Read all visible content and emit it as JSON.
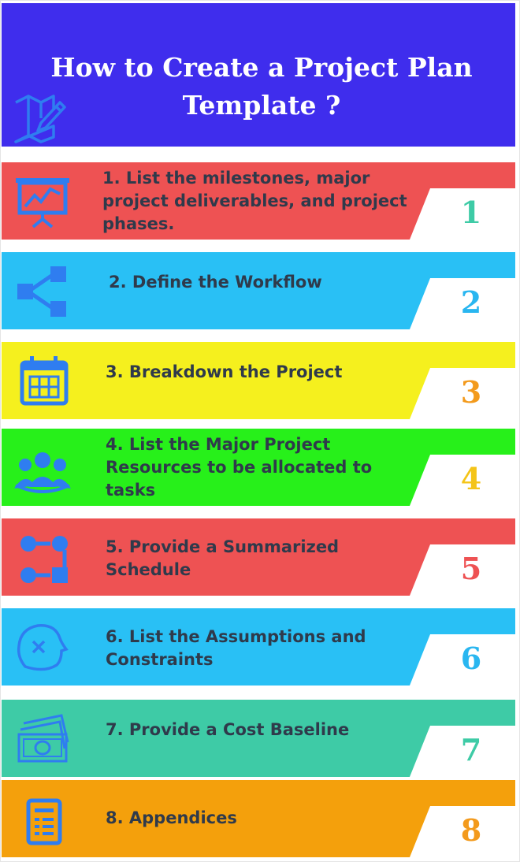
{
  "header": {
    "title": "How to Create a Project Plan Template ?",
    "background": "#3f2ded",
    "icon": "map-pencil-icon"
  },
  "steps": [
    {
      "label": "1. List the milestones, major project deliverables, and project phases.",
      "number": "1",
      "color": "#ee5253",
      "number_color": "#3ecba6",
      "icon": "presentation-chart-icon"
    },
    {
      "label": "2. Define the Workflow",
      "number": "2",
      "color": "#29c0f5",
      "number_color": "#29b6f0",
      "icon": "workflow-icon"
    },
    {
      "label": "3. Breakdown the Project",
      "number": "3",
      "color": "#f5f01e",
      "number_color": "#f39a1c",
      "icon": "calendar-icon"
    },
    {
      "label": "4. List the Major Project Resources to be allocated to tasks",
      "number": "4",
      "color": "#27f01a",
      "number_color": "#f4c418",
      "icon": "team-icon"
    },
    {
      "label": "5. Provide a Summarized Schedule",
      "number": "5",
      "color": "#ee5253",
      "number_color": "#ee5253",
      "icon": "schedule-flow-icon"
    },
    {
      "label": "6. List the Assumptions and Constraints",
      "number": "6",
      "color": "#29c0f5",
      "number_color": "#29b6f0",
      "icon": "head-constraint-icon"
    },
    {
      "label": "7. Provide a Cost Baseline",
      "number": "7",
      "color": "#3ecba6",
      "number_color": "#3ecba6",
      "icon": "money-icon"
    },
    {
      "label": "8. Appendices",
      "number": "8",
      "color": "#f4a00c",
      "number_color": "#f39a1c",
      "icon": "document-icon"
    }
  ],
  "icon_color": "#2f7df0"
}
